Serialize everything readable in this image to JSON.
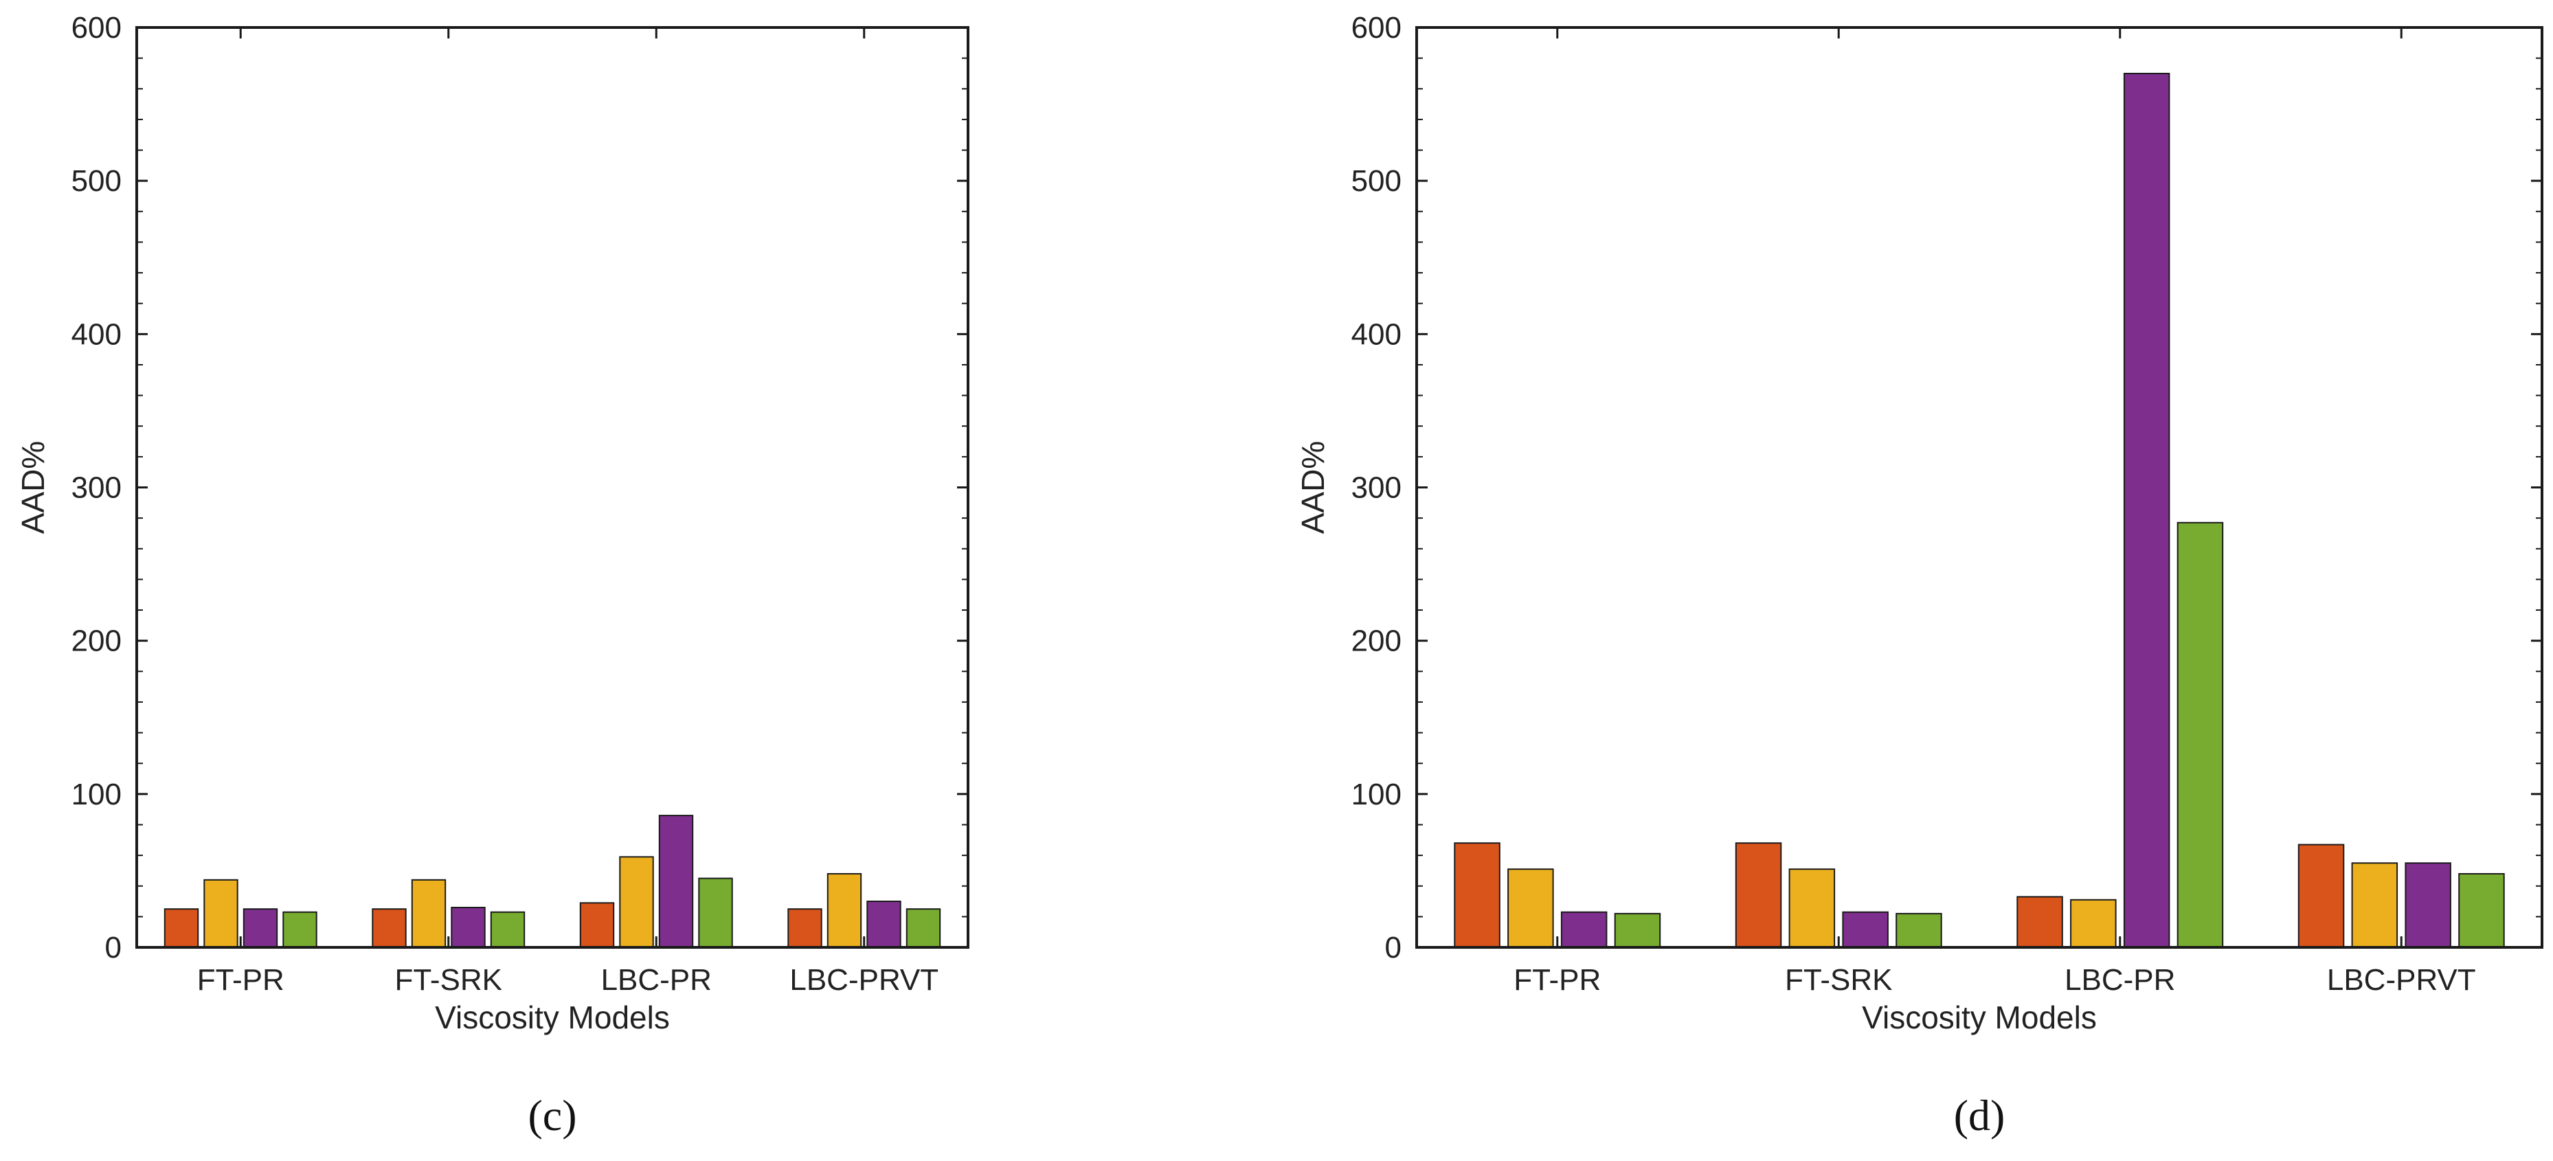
{
  "chart_data": [
    {
      "type": "bar",
      "panel_label": "(c)",
      "categories": [
        "FT-PR",
        "FT-SRK",
        "LBC-PR",
        "LBC-PRVT"
      ],
      "series": [
        {
          "color": "#d9541a",
          "values": [
            25,
            25,
            29,
            25
          ]
        },
        {
          "color": "#ecb01f",
          "values": [
            44,
            44,
            59,
            48
          ]
        },
        {
          "color": "#7e2f8e",
          "values": [
            25,
            26,
            86,
            30
          ]
        },
        {
          "color": "#77ac30",
          "values": [
            23,
            23,
            45,
            25
          ]
        }
      ],
      "xlabel": "Viscosity Models",
      "ylabel": "AAD%",
      "ylim": [
        0,
        600
      ],
      "yticks": [
        0,
        100,
        200,
        300,
        400,
        500,
        600
      ],
      "grid": false
    },
    {
      "type": "bar",
      "panel_label": "(d)",
      "categories": [
        "FT-PR",
        "FT-SRK",
        "LBC-PR",
        "LBC-PRVT"
      ],
      "series": [
        {
          "color": "#d9541a",
          "values": [
            68,
            68,
            33,
            67
          ]
        },
        {
          "color": "#ecb01f",
          "values": [
            51,
            51,
            31,
            55
          ]
        },
        {
          "color": "#7e2f8e",
          "values": [
            23,
            23,
            570,
            55
          ]
        },
        {
          "color": "#77ac30",
          "values": [
            22,
            22,
            277,
            48
          ]
        }
      ],
      "xlabel": "Viscosity Models",
      "ylabel": "AAD%",
      "ylim": [
        0,
        600
      ],
      "yticks": [
        0,
        100,
        200,
        300,
        400,
        500,
        600
      ],
      "grid": false
    }
  ]
}
